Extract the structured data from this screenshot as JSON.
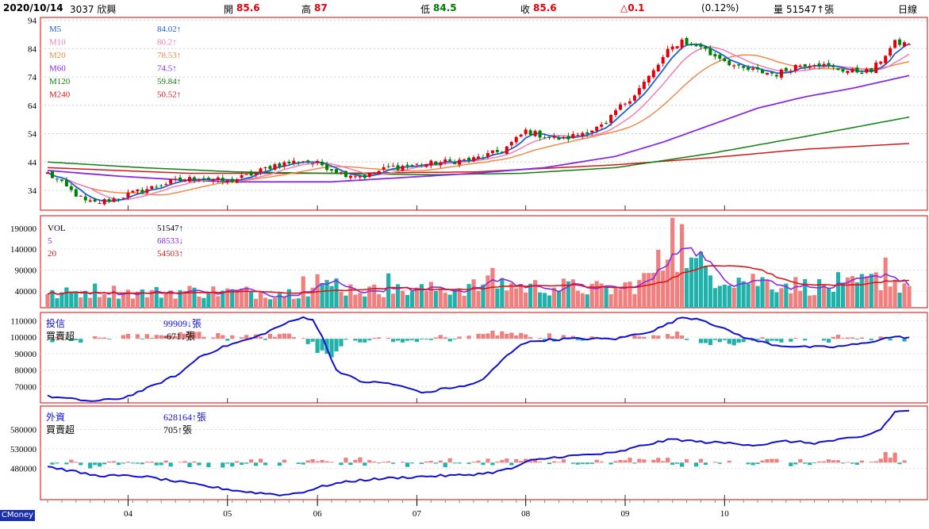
{
  "header": {
    "date": "2020/10/14",
    "stock": "3037 欣興",
    "open_label": "開",
    "open": "85.6",
    "high_label": "高",
    "high": "87",
    "low_label": "低",
    "low": "84.5",
    "close_label": "收",
    "close": "85.6",
    "change": "△0.1",
    "change_pct": "(0.12%)",
    "volume_label": "量",
    "volume": "51547↑張",
    "period": "日線"
  },
  "brand": "CMoney",
  "colors": {
    "up": "#f08080",
    "down": "#20b2aa",
    "kline_up": "#e0000a",
    "kline_down": "#008000",
    "m5": "#1e5fd8",
    "m10": "#ef7fb4",
    "m20": "#f08a4b",
    "m60": "#8a2be2",
    "m120": "#108010",
    "m240": "#d81818"
  },
  "chart_data": [
    {
      "type": "candlestick",
      "title": "",
      "x_tick_labels": [
        "04",
        "05",
        "06",
        "07",
        "08",
        "09",
        "10"
      ],
      "y_ticks": [
        94,
        84,
        74,
        64,
        54,
        44,
        34
      ],
      "ylim": [
        27,
        95
      ],
      "legend": [
        {
          "name": "M5",
          "value": "84.02↑"
        },
        {
          "name": "M10",
          "value": "80.2↑"
        },
        {
          "name": "M20",
          "value": "78.53↑"
        },
        {
          "name": "M60",
          "value": "74.5↑"
        },
        {
          "name": "M120",
          "value": "59.84↑"
        },
        {
          "name": "M240",
          "value": "50.52↑"
        }
      ],
      "close_anchors": [
        [
          0,
          40
        ],
        [
          8,
          30
        ],
        [
          10,
          29.5
        ],
        [
          14,
          31
        ],
        [
          20,
          34
        ],
        [
          26,
          37
        ],
        [
          32,
          38.5
        ],
        [
          38,
          37
        ],
        [
          42,
          39
        ],
        [
          48,
          43
        ],
        [
          54,
          44.5
        ],
        [
          58,
          43
        ],
        [
          62,
          40
        ],
        [
          67,
          39
        ],
        [
          72,
          42
        ],
        [
          78,
          43
        ],
        [
          84,
          44
        ],
        [
          90,
          45
        ],
        [
          96,
          48
        ],
        [
          99,
          52
        ],
        [
          101,
          55
        ],
        [
          105,
          53
        ],
        [
          109,
          52
        ],
        [
          114,
          55
        ],
        [
          118,
          57
        ],
        [
          120,
          62
        ],
        [
          124,
          68
        ],
        [
          128,
          76
        ],
        [
          131,
          83
        ],
        [
          134,
          87
        ],
        [
          136,
          85
        ],
        [
          138,
          85
        ],
        [
          140,
          82
        ],
        [
          142,
          81
        ],
        [
          146,
          77
        ],
        [
          150,
          76
        ],
        [
          154,
          75
        ],
        [
          158,
          78
        ],
        [
          162,
          79
        ],
        [
          166,
          77
        ],
        [
          170,
          76
        ],
        [
          174,
          76
        ],
        [
          176,
          80
        ],
        [
          179,
          86
        ],
        [
          182,
          85.6
        ]
      ],
      "moving_averages": {
        "M120_anchors": [
          [
            0,
            44
          ],
          [
            20,
            42
          ],
          [
            40,
            40.5
          ],
          [
            60,
            40
          ],
          [
            80,
            39.5
          ],
          [
            100,
            40
          ],
          [
            120,
            42
          ],
          [
            140,
            47
          ],
          [
            160,
            53
          ],
          [
            182,
            59.84
          ]
        ],
        "M240_anchors": [
          [
            0,
            42
          ],
          [
            30,
            40
          ],
          [
            60,
            40
          ],
          [
            90,
            40.5
          ],
          [
            120,
            43
          ],
          [
            140,
            45.5
          ],
          [
            160,
            48.5
          ],
          [
            182,
            50.52
          ]
        ],
        "M60_anchors": [
          [
            0,
            41
          ],
          [
            15,
            39
          ],
          [
            30,
            37.5
          ],
          [
            40,
            37
          ],
          [
            60,
            37
          ],
          [
            75,
            38.5
          ],
          [
            90,
            40
          ],
          [
            105,
            42
          ],
          [
            120,
            46
          ],
          [
            130,
            51
          ],
          [
            140,
            57
          ],
          [
            150,
            63
          ],
          [
            160,
            67
          ],
          [
            170,
            70
          ],
          [
            182,
            74.5
          ]
        ]
      }
    },
    {
      "type": "bar",
      "title": "",
      "y_ticks": [
        190000,
        140000,
        90000,
        40000
      ],
      "ylim": [
        0,
        220000
      ],
      "legend": [
        {
          "name": "VOL",
          "value": "51547↑"
        },
        {
          "name": "5",
          "value": "68533↓"
        },
        {
          "name": "20",
          "value": "54503↑"
        }
      ],
      "volume_anchors": [
        [
          0,
          30000
        ],
        [
          10,
          42000
        ],
        [
          20,
          35000
        ],
        [
          30,
          40000
        ],
        [
          40,
          38000
        ],
        [
          50,
          35000
        ],
        [
          56,
          45000
        ],
        [
          60,
          52000
        ],
        [
          68,
          40000
        ],
        [
          76,
          42000
        ],
        [
          84,
          45000
        ],
        [
          90,
          50000
        ],
        [
          96,
          58000
        ],
        [
          100,
          50000
        ],
        [
          110,
          50000
        ],
        [
          120,
          42000
        ],
        [
          126,
          65000
        ],
        [
          128,
          90000
        ],
        [
          131,
          120000
        ],
        [
          134,
          160000
        ],
        [
          136,
          110000
        ],
        [
          140,
          85000
        ],
        [
          146,
          70000
        ],
        [
          154,
          60000
        ],
        [
          160,
          52000
        ],
        [
          168,
          48000
        ],
        [
          176,
          70000
        ],
        [
          182,
          51547
        ]
      ],
      "spikes": [
        [
          132,
          215000
        ],
        [
          131,
          115000
        ],
        [
          136,
          120000
        ],
        [
          135,
          95000
        ],
        [
          54,
          75000
        ],
        [
          57,
          80000
        ],
        [
          61,
          70000
        ],
        [
          72,
          82000
        ],
        [
          94,
          95000
        ],
        [
          167,
          85000
        ],
        [
          177,
          120000
        ]
      ]
    },
    {
      "type": "bar+line",
      "name_label": "投信",
      "value": "99909↓張",
      "net_label": "買賣超",
      "net_value": "-671↓張",
      "y_ticks": [
        110000,
        100000,
        90000,
        80000,
        70000
      ],
      "ylim": [
        60000,
        115000
      ],
      "holding_anchors": [
        [
          0,
          64000
        ],
        [
          6,
          62000
        ],
        [
          10,
          61000
        ],
        [
          16,
          63000
        ],
        [
          22,
          70000
        ],
        [
          28,
          78000
        ],
        [
          32,
          88000
        ],
        [
          38,
          95000
        ],
        [
          44,
          100000
        ],
        [
          50,
          108000
        ],
        [
          54,
          112000
        ],
        [
          56,
          111000
        ],
        [
          58,
          100000
        ],
        [
          61,
          80000
        ],
        [
          66,
          73000
        ],
        [
          72,
          72000
        ],
        [
          76,
          69000
        ],
        [
          80,
          66000
        ],
        [
          84,
          69000
        ],
        [
          88,
          70000
        ],
        [
          92,
          74000
        ],
        [
          96,
          86000
        ],
        [
          100,
          96000
        ],
        [
          104,
          98000
        ],
        [
          110,
          99000
        ],
        [
          120,
          99000
        ],
        [
          128,
          104000
        ],
        [
          134,
          112000
        ],
        [
          138,
          111000
        ],
        [
          142,
          106000
        ],
        [
          148,
          99000
        ],
        [
          154,
          95000
        ],
        [
          160,
          94000
        ],
        [
          166,
          94000
        ],
        [
          172,
          96000
        ],
        [
          178,
          100000
        ],
        [
          182,
          99909
        ]
      ]
    },
    {
      "type": "bar+line",
      "name_label": "外資",
      "value": "628164↑張",
      "net_label": "買賣超",
      "net_value": "705↑張",
      "y_ticks": [
        580000,
        530000,
        480000
      ],
      "ylim": [
        400000,
        640000
      ],
      "holding_anchors": [
        [
          0,
          485000
        ],
        [
          10,
          462000
        ],
        [
          20,
          460000
        ],
        [
          28,
          445000
        ],
        [
          36,
          430000
        ],
        [
          42,
          420000
        ],
        [
          50,
          412000
        ],
        [
          54,
          420000
        ],
        [
          60,
          440000
        ],
        [
          66,
          450000
        ],
        [
          72,
          455000
        ],
        [
          80,
          460000
        ],
        [
          86,
          462000
        ],
        [
          90,
          465000
        ],
        [
          94,
          470000
        ],
        [
          98,
          480000
        ],
        [
          102,
          500000
        ],
        [
          108,
          510000
        ],
        [
          114,
          515000
        ],
        [
          120,
          520000
        ],
        [
          126,
          540000
        ],
        [
          132,
          555000
        ],
        [
          138,
          548000
        ],
        [
          144,
          545000
        ],
        [
          150,
          540000
        ],
        [
          156,
          550000
        ],
        [
          162,
          545000
        ],
        [
          168,
          555000
        ],
        [
          172,
          560000
        ],
        [
          176,
          580000
        ],
        [
          179,
          625000
        ],
        [
          182,
          628164
        ]
      ]
    }
  ]
}
